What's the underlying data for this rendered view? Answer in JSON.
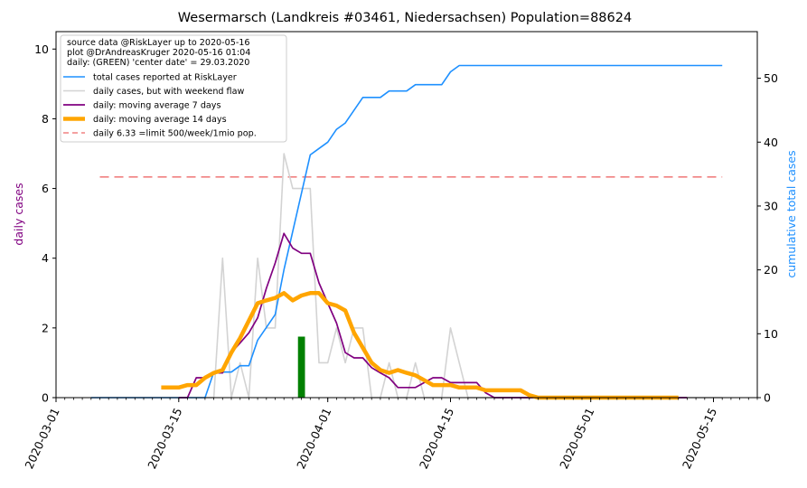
{
  "chart_data": {
    "type": "line",
    "title": "Wesermarsch (Landkreis #03461, Niedersachsen) Population=88624",
    "ylabel_left": "daily cases",
    "ylabel_right": "cumulative total cases",
    "xlabel": "",
    "colors": {
      "total": "#1e90ff",
      "daily": "#d3d3d3",
      "ma7": "#800080",
      "ma14": "#ffa500",
      "limit": "#f08080",
      "center": "#008000",
      "ylabel_left": "#800080",
      "ylabel_right": "#1e90ff"
    },
    "x_range": [
      "2020-03-01",
      "2020-05-20"
    ],
    "ylim_left": [
      0,
      10.5
    ],
    "ylim_right": [
      0,
      57.3
    ],
    "x_ticks": [
      "2020-03-01",
      "2020-03-15",
      "2020-04-01",
      "2020-04-15",
      "2020-05-01",
      "2020-05-15"
    ],
    "yticks_left": [
      "0",
      "2",
      "4",
      "6",
      "8",
      "10"
    ],
    "yticks_right": [
      "0",
      "10",
      "20",
      "30",
      "40",
      "50"
    ],
    "legend": {
      "position": "top-left",
      "header": [
        "source data @RiskLayer up to 2020-05-16",
        "plot @DrAndreasKruger 2020-05-16 01:04",
        "daily: (GREEN) 'center date' = 29.03.2020"
      ],
      "entries": [
        "total cases reported at RiskLayer",
        "daily cases, but with weekend flaw",
        "daily: moving average 7 days",
        "daily: moving average 14 days",
        "daily 6.33 =limit 500/week/1mio pop."
      ]
    },
    "center_date": "2020-03-29",
    "center_value": 1.75,
    "limit_value": 6.33,
    "limit_range": [
      "2020-03-06",
      "2020-05-16"
    ],
    "series": [
      {
        "name": "total cases reported at RiskLayer",
        "axis": "right",
        "points": [
          [
            "2020-03-05",
            0
          ],
          [
            "2020-03-18",
            0
          ],
          [
            "2020-03-19",
            4
          ],
          [
            "2020-03-20",
            4
          ],
          [
            "2020-03-21",
            4
          ],
          [
            "2020-03-22",
            5
          ],
          [
            "2020-03-23",
            5
          ],
          [
            "2020-03-24",
            9
          ],
          [
            "2020-03-25",
            11
          ],
          [
            "2020-03-26",
            13
          ],
          [
            "2020-03-27",
            20
          ],
          [
            "2020-03-28",
            26
          ],
          [
            "2020-03-29",
            32
          ],
          [
            "2020-03-30",
            38
          ],
          [
            "2020-03-31",
            39
          ],
          [
            "2020-04-01",
            40
          ],
          [
            "2020-04-02",
            42
          ],
          [
            "2020-04-03",
            43
          ],
          [
            "2020-04-04",
            45
          ],
          [
            "2020-04-05",
            47
          ],
          [
            "2020-04-06",
            47
          ],
          [
            "2020-04-07",
            47
          ],
          [
            "2020-04-08",
            48
          ],
          [
            "2020-04-09",
            48
          ],
          [
            "2020-04-10",
            48
          ],
          [
            "2020-04-11",
            49
          ],
          [
            "2020-04-12",
            49
          ],
          [
            "2020-04-13",
            49
          ],
          [
            "2020-04-14",
            49
          ],
          [
            "2020-04-15",
            51
          ],
          [
            "2020-04-16",
            52
          ],
          [
            "2020-05-16",
            52
          ]
        ]
      },
      {
        "name": "daily cases, but with weekend flaw",
        "axis": "left",
        "points": [
          [
            "2020-03-05",
            0
          ],
          [
            "2020-03-19",
            0
          ],
          [
            "2020-03-20",
            4
          ],
          [
            "2020-03-21",
            0
          ],
          [
            "2020-03-22",
            1
          ],
          [
            "2020-03-23",
            0
          ],
          [
            "2020-03-24",
            4
          ],
          [
            "2020-03-25",
            2
          ],
          [
            "2020-03-26",
            2
          ],
          [
            "2020-03-27",
            7
          ],
          [
            "2020-03-28",
            6
          ],
          [
            "2020-03-29",
            6
          ],
          [
            "2020-03-30",
            6
          ],
          [
            "2020-03-31",
            1
          ],
          [
            "2020-04-01",
            1
          ],
          [
            "2020-04-02",
            2
          ],
          [
            "2020-04-03",
            1
          ],
          [
            "2020-04-04",
            2
          ],
          [
            "2020-04-05",
            2
          ],
          [
            "2020-04-06",
            0
          ],
          [
            "2020-04-07",
            0
          ],
          [
            "2020-04-08",
            1
          ],
          [
            "2020-04-09",
            0
          ],
          [
            "2020-04-10",
            0
          ],
          [
            "2020-04-11",
            1
          ],
          [
            "2020-04-12",
            0
          ],
          [
            "2020-04-13",
            0
          ],
          [
            "2020-04-14",
            0
          ],
          [
            "2020-04-15",
            2
          ],
          [
            "2020-04-16",
            1
          ],
          [
            "2020-04-17",
            0
          ],
          [
            "2020-05-16",
            0
          ]
        ]
      },
      {
        "name": "daily: moving average 7 days",
        "axis": "left",
        "points": [
          [
            "2020-03-15",
            0
          ],
          [
            "2020-03-16",
            0
          ],
          [
            "2020-03-17",
            0.57
          ],
          [
            "2020-03-18",
            0.57
          ],
          [
            "2020-03-19",
            0.71
          ],
          [
            "2020-03-20",
            0.71
          ],
          [
            "2020-03-21",
            1.29
          ],
          [
            "2020-03-22",
            1.57
          ],
          [
            "2020-03-23",
            1.86
          ],
          [
            "2020-03-24",
            2.29
          ],
          [
            "2020-03-25",
            3.14
          ],
          [
            "2020-03-26",
            3.86
          ],
          [
            "2020-03-27",
            4.71
          ],
          [
            "2020-03-28",
            4.29
          ],
          [
            "2020-03-29",
            4.14
          ],
          [
            "2020-03-30",
            4.14
          ],
          [
            "2020-03-31",
            3.29
          ],
          [
            "2020-04-01",
            2.71
          ],
          [
            "2020-04-02",
            2.14
          ],
          [
            "2020-04-03",
            1.29
          ],
          [
            "2020-04-04",
            1.14
          ],
          [
            "2020-04-05",
            1.14
          ],
          [
            "2020-04-06",
            0.86
          ],
          [
            "2020-04-07",
            0.71
          ],
          [
            "2020-04-08",
            0.57
          ],
          [
            "2020-04-09",
            0.29
          ],
          [
            "2020-04-10",
            0.29
          ],
          [
            "2020-04-11",
            0.29
          ],
          [
            "2020-04-12",
            0.43
          ],
          [
            "2020-04-13",
            0.57
          ],
          [
            "2020-04-14",
            0.57
          ],
          [
            "2020-04-15",
            0.43
          ],
          [
            "2020-04-16",
            0.43
          ],
          [
            "2020-04-17",
            0.43
          ],
          [
            "2020-04-18",
            0.43
          ],
          [
            "2020-04-19",
            0.14
          ],
          [
            "2020-04-20",
            0
          ],
          [
            "2020-05-12",
            0
          ]
        ]
      },
      {
        "name": "daily: moving average 14 days",
        "axis": "left",
        "points": [
          [
            "2020-03-13",
            0.29
          ],
          [
            "2020-03-14",
            0.29
          ],
          [
            "2020-03-15",
            0.29
          ],
          [
            "2020-03-16",
            0.36
          ],
          [
            "2020-03-17",
            0.36
          ],
          [
            "2020-03-18",
            0.57
          ],
          [
            "2020-03-19",
            0.71
          ],
          [
            "2020-03-20",
            0.79
          ],
          [
            "2020-03-21",
            1.29
          ],
          [
            "2020-03-22",
            1.71
          ],
          [
            "2020-03-23",
            2.21
          ],
          [
            "2020-03-24",
            2.71
          ],
          [
            "2020-03-25",
            2.79
          ],
          [
            "2020-03-26",
            2.86
          ],
          [
            "2020-03-27",
            3.0
          ],
          [
            "2020-03-28",
            2.79
          ],
          [
            "2020-03-29",
            2.93
          ],
          [
            "2020-03-30",
            3.0
          ],
          [
            "2020-03-31",
            3.0
          ],
          [
            "2020-04-01",
            2.71
          ],
          [
            "2020-04-02",
            2.64
          ],
          [
            "2020-04-03",
            2.5
          ],
          [
            "2020-04-04",
            1.86
          ],
          [
            "2020-04-05",
            1.43
          ],
          [
            "2020-04-06",
            1.0
          ],
          [
            "2020-04-07",
            0.79
          ],
          [
            "2020-04-08",
            0.71
          ],
          [
            "2020-04-09",
            0.79
          ],
          [
            "2020-04-10",
            0.71
          ],
          [
            "2020-04-11",
            0.64
          ],
          [
            "2020-04-12",
            0.5
          ],
          [
            "2020-04-13",
            0.36
          ],
          [
            "2020-04-14",
            0.36
          ],
          [
            "2020-04-15",
            0.36
          ],
          [
            "2020-04-16",
            0.29
          ],
          [
            "2020-04-17",
            0.29
          ],
          [
            "2020-04-18",
            0.29
          ],
          [
            "2020-04-19",
            0.21
          ],
          [
            "2020-04-20",
            0.21
          ],
          [
            "2020-04-21",
            0.21
          ],
          [
            "2020-04-22",
            0.21
          ],
          [
            "2020-04-23",
            0.21
          ],
          [
            "2020-04-24",
            0.07
          ],
          [
            "2020-04-25",
            0
          ],
          [
            "2020-05-11",
            0
          ]
        ]
      }
    ]
  }
}
